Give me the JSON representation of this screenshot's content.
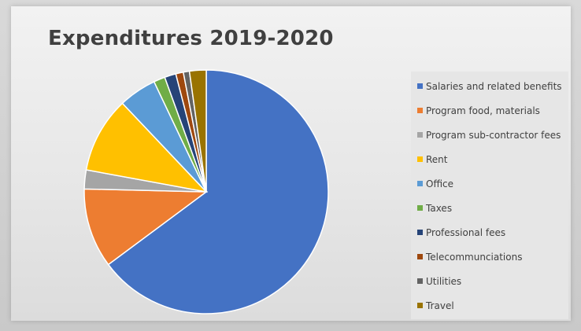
{
  "chart_data": {
    "type": "pie",
    "title": "Expenditures 2019-2020",
    "legend_position": "right",
    "series": [
      {
        "categories": [
          "Salaries and related benefits",
          "Program food, materials",
          "Program sub-contractor fees",
          "Rent",
          "Office",
          "Taxes",
          "Professional fees",
          "Telecommunciations",
          "Utilities",
          "Travel"
        ],
        "values": [
          64.5,
          10.5,
          2.5,
          10.0,
          5.0,
          1.5,
          1.5,
          1.0,
          0.8,
          2.2
        ],
        "colors": [
          "#4472c4",
          "#ed7d31",
          "#a5a5a5",
          "#ffc000",
          "#5b9bd5",
          "#70ad47",
          "#264478",
          "#9e480e",
          "#636363",
          "#997300"
        ]
      }
    ]
  }
}
